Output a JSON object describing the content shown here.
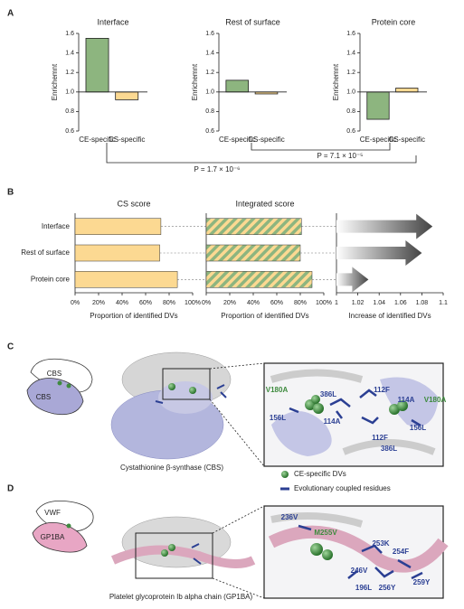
{
  "chart_data": [
    {
      "type": "bar",
      "title": "Interface",
      "ylabel": "Enrichemnt",
      "categories": [
        "CE-specific",
        "CS-specific"
      ],
      "values": [
        1.55,
        0.92
      ],
      "colors": [
        "#8db57f",
        "#fcd992"
      ],
      "baseline": 1,
      "ylim": [
        0.6,
        1.6
      ],
      "yticks": [
        0.6,
        0.8,
        {
          "value": 1,
          "label": "1.0"
        },
        1.2,
        1.4,
        1.6
      ]
    },
    {
      "type": "bar",
      "title": "Rest of surface",
      "ylabel": "Enrichemnt",
      "categories": [
        "CE-specific",
        "CS-specific"
      ],
      "values": [
        1.12,
        0.98
      ],
      "colors": [
        "#8db57f",
        "#fcd992"
      ],
      "baseline": 1,
      "ylim": [
        0.6,
        1.6
      ],
      "yticks": [
        0.6,
        0.8,
        {
          "value": 1,
          "label": "1.0"
        },
        1.2,
        1.4,
        1.6
      ]
    },
    {
      "type": "bar",
      "title": "Protein core",
      "ylabel": "Enrichemnt",
      "categories": [
        "CE-specific",
        "CS-specific"
      ],
      "values": [
        0.72,
        1.04
      ],
      "colors": [
        "#8db57f",
        "#fcd992"
      ],
      "baseline": 1,
      "ylim": [
        0.6,
        1.6
      ],
      "yticks": [
        0.6,
        0.8,
        {
          "value": 1,
          "label": "1.0"
        },
        1.2,
        1.4,
        1.6
      ]
    },
    {
      "type": "hbar",
      "title": "CS score",
      "xlabel": "Proportion of identified DVs",
      "categories": [
        "Interface",
        "Rest of surface",
        "Protein core"
      ],
      "values": [
        73,
        72,
        87
      ],
      "color": "#fcd992",
      "xlim": [
        0,
        100
      ],
      "xticks": [
        {
          "value": 0,
          "label": "0%"
        },
        {
          "value": 20,
          "label": "20%"
        },
        {
          "value": 40,
          "label": "40%"
        },
        {
          "value": 60,
          "label": "60%"
        },
        {
          "value": 80,
          "label": "80%"
        },
        {
          "value": 100,
          "label": "100%"
        }
      ]
    },
    {
      "type": "hbar",
      "title": "Integrated score",
      "xlabel": "Proportion of identified DVs",
      "values": [
        81,
        80,
        90
      ],
      "color": "#8db57f",
      "stripe_color": "#fcd992",
      "xlim": [
        0,
        100
      ],
      "xticks": [
        {
          "value": 0,
          "label": "0%"
        },
        {
          "value": 20,
          "label": "20%"
        },
        {
          "value": 40,
          "label": "40%"
        },
        {
          "value": 60,
          "label": "60%"
        },
        {
          "value": 80,
          "label": "80%"
        },
        {
          "value": 100,
          "label": "100%"
        }
      ]
    },
    {
      "type": "arrow",
      "xlabel": "Increase of identified DVs",
      "values": [
        1.09,
        1.08,
        1.03
      ],
      "xlim": [
        1,
        1.1
      ],
      "xticks": [
        1,
        1.02,
        1.04,
        1.06,
        1.08,
        1.1
      ]
    }
  ],
  "panels": {
    "labels": [
      "A",
      "B",
      "C",
      "D"
    ],
    "p_values": [
      "P = 7.1 × 10⁻⁵",
      "P = 1.7 × 10⁻⁶"
    ],
    "legend": [
      "CE-specific DVs",
      "Evolutionary coupled residues"
    ],
    "C": {
      "schematic": [
        "CBS",
        "CBS"
      ],
      "caption": "Cystathionine β-synthase (CBS)",
      "residues": [
        {
          "text": "386L",
          "color": "#2b3f93"
        },
        {
          "text": "V180A",
          "color": "#3d8a3d"
        },
        {
          "text": "112F",
          "color": "#2b3f93"
        },
        {
          "text": "114A",
          "color": "#2b3f93"
        },
        {
          "text": "V180A",
          "color": "#3d8a3d"
        },
        {
          "text": "156L",
          "color": "#2b3f93"
        },
        {
          "text": "114A",
          "color": "#2b3f93"
        },
        {
          "text": "112F",
          "color": "#2b3f93"
        },
        {
          "text": "386L",
          "color": "#2b3f93"
        },
        {
          "text": "156L",
          "color": "#2b3f93"
        }
      ]
    },
    "D": {
      "schematic": [
        "VWF",
        "GP1BA"
      ],
      "caption": "Platelet glycoprotein Ib alpha chain (GP1BA)",
      "residues": [
        {
          "text": "236V",
          "color": "#2b3f93"
        },
        {
          "text": "M255V",
          "color": "#3d8a3d"
        },
        {
          "text": "253K",
          "color": "#2b3f93"
        },
        {
          "text": "254F",
          "color": "#2b3f93"
        },
        {
          "text": "246V",
          "color": "#2b3f93"
        },
        {
          "text": "196L",
          "color": "#2b3f93"
        },
        {
          "text": "256Y",
          "color": "#2b3f93"
        },
        {
          "text": "259Y",
          "color": "#2b3f93"
        }
      ]
    }
  }
}
